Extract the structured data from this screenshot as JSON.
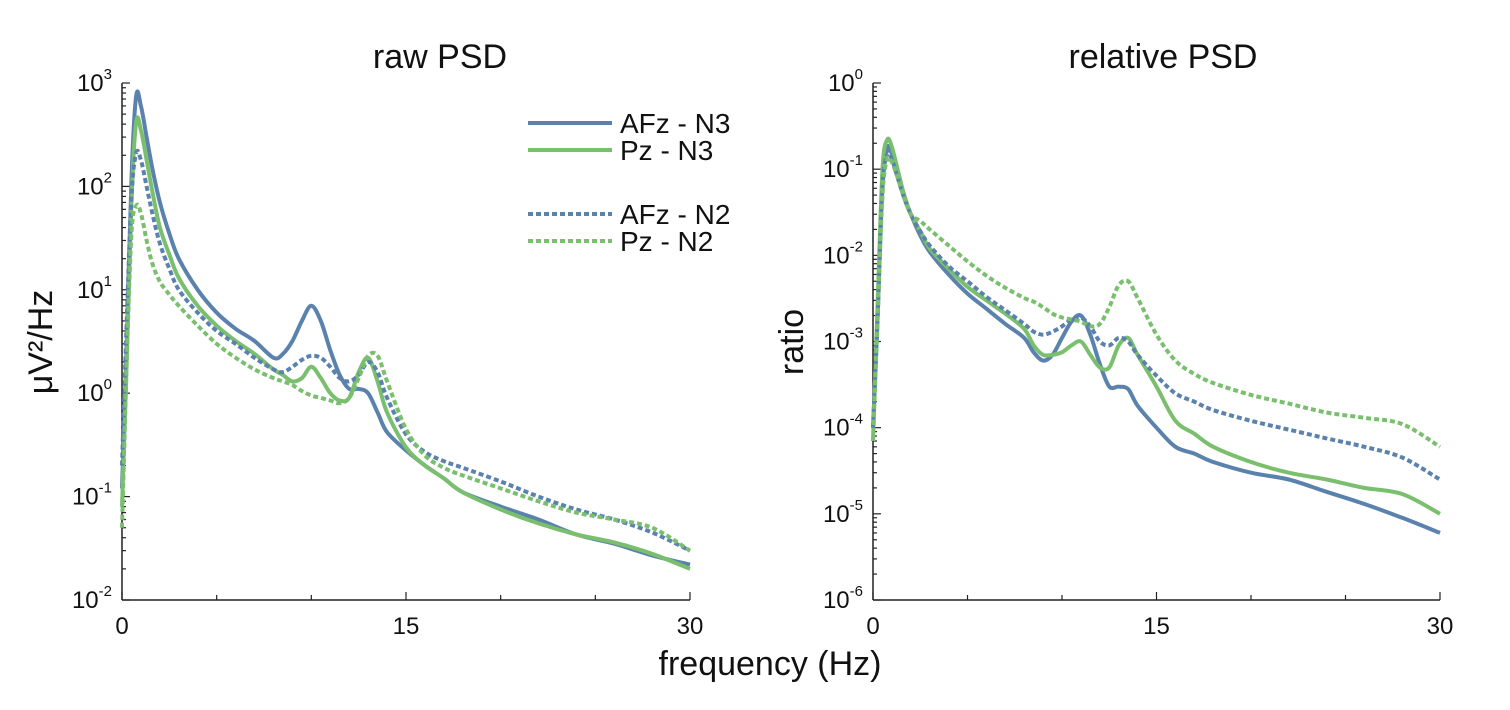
{
  "figure": {
    "xlabel": "frequency (Hz)"
  },
  "chart_data": [
    {
      "type": "line",
      "title": "raw PSD",
      "xlabel": "frequency (Hz)",
      "ylabel": "μV²/Hz",
      "xlim": [
        0,
        30
      ],
      "ylim": [
        0.01,
        1000
      ],
      "yscale": "log",
      "xticks": [
        0,
        15,
        30
      ],
      "xticks_minor": [
        5,
        10,
        20,
        25
      ],
      "yticks": [
        {
          "base": "10",
          "exp": "-2",
          "value": 0.01
        },
        {
          "base": "10",
          "exp": "-1",
          "value": 0.1
        },
        {
          "base": "10",
          "exp": "0",
          "value": 1
        },
        {
          "base": "10",
          "exp": "1",
          "value": 10
        },
        {
          "base": "10",
          "exp": "2",
          "value": 100
        },
        {
          "base": "10",
          "exp": "3",
          "value": 1000
        }
      ],
      "grid": false,
      "legend": {
        "placement": "top-right",
        "entries": [
          {
            "label": "AFz - N3",
            "series": 0
          },
          {
            "label": "Pz - N3",
            "series": 1
          },
          {
            "label": "AFz - N2",
            "series": 2
          },
          {
            "label": "Pz - N2",
            "series": 3
          }
        ]
      },
      "series": [
        {
          "name": "AFz - N3",
          "color": "#5a82ad",
          "dash": "solid",
          "x": [
            0,
            0.25,
            0.5,
            0.75,
            1.0,
            1.3,
            1.6,
            2,
            2.5,
            3,
            4,
            5,
            6,
            7,
            8,
            8.5,
            9,
            9.5,
            10,
            10.5,
            11,
            11.5,
            12,
            12.5,
            13,
            13.5,
            14,
            15,
            16,
            17,
            18,
            20,
            22,
            24,
            26,
            28,
            30
          ],
          "y": [
            0.12,
            3,
            120,
            750,
            600,
            300,
            150,
            70,
            35,
            20,
            10,
            6,
            4.2,
            3.2,
            2.2,
            2.4,
            3.2,
            5,
            7,
            5,
            2.6,
            1.5,
            1.1,
            1.1,
            1.0,
            0.65,
            0.42,
            0.28,
            0.2,
            0.15,
            0.11,
            0.08,
            0.06,
            0.043,
            0.035,
            0.027,
            0.022
          ]
        },
        {
          "name": "Pz - N3",
          "color": "#7abf6e",
          "dash": "solid",
          "x": [
            0,
            0.25,
            0.5,
            0.75,
            1.0,
            1.3,
            1.6,
            2,
            2.5,
            3,
            4,
            5,
            6,
            7,
            8,
            8.5,
            9,
            9.5,
            10,
            10.5,
            11,
            11.5,
            12,
            12.5,
            13,
            13.5,
            14,
            15,
            16,
            17,
            18,
            20,
            22,
            24,
            26,
            28,
            30
          ],
          "y": [
            0.08,
            2,
            70,
            420,
            350,
            180,
            90,
            40,
            22,
            13,
            7,
            4.5,
            3.2,
            2.4,
            1.7,
            1.5,
            1.3,
            1.4,
            1.8,
            1.4,
            1.0,
            0.85,
            0.9,
            1.6,
            2.2,
            1.3,
            0.65,
            0.3,
            0.2,
            0.15,
            0.11,
            0.075,
            0.055,
            0.043,
            0.036,
            0.028,
            0.02
          ]
        },
        {
          "name": "AFz - N2",
          "color": "#5a82ad",
          "dash": "dotted",
          "x": [
            0,
            0.25,
            0.5,
            0.75,
            1.0,
            1.3,
            1.6,
            2,
            2.5,
            3,
            4,
            5,
            6,
            7,
            8,
            8.5,
            9,
            9.5,
            10,
            10.5,
            11,
            11.5,
            12,
            12.5,
            13,
            13.5,
            14,
            15,
            16,
            17,
            18,
            20,
            22,
            24,
            26,
            28,
            30
          ],
          "y": [
            0.2,
            5,
            80,
            210,
            180,
            100,
            55,
            28,
            16,
            10,
            6,
            4,
            3,
            2.2,
            1.7,
            1.6,
            1.8,
            2.1,
            2.3,
            2.2,
            1.8,
            1.4,
            1.3,
            1.5,
            2.0,
            1.6,
            0.9,
            0.4,
            0.27,
            0.22,
            0.19,
            0.14,
            0.1,
            0.075,
            0.06,
            0.045,
            0.03
          ]
        },
        {
          "name": "Pz - N2",
          "color": "#7abf6e",
          "dash": "dotted",
          "x": [
            0,
            0.25,
            0.5,
            0.75,
            1.0,
            1.3,
            1.6,
            2,
            2.5,
            3,
            4,
            5,
            6,
            7,
            8,
            8.5,
            9,
            9.5,
            10,
            10.5,
            11,
            11.5,
            12,
            12.5,
            13,
            13.5,
            14,
            15,
            16,
            17,
            18,
            20,
            22,
            24,
            26,
            28,
            30
          ],
          "y": [
            0.05,
            2,
            35,
            65,
            55,
            30,
            18,
            12,
            9,
            7,
            4.5,
            3,
            2.2,
            1.7,
            1.4,
            1.3,
            1.2,
            1.05,
            0.95,
            0.9,
            0.85,
            0.8,
            0.9,
            1.4,
            2.3,
            2.3,
            1.3,
            0.45,
            0.25,
            0.19,
            0.16,
            0.12,
            0.09,
            0.07,
            0.06,
            0.05,
            0.03
          ]
        }
      ]
    },
    {
      "type": "line",
      "title": "relative PSD",
      "xlabel": "frequency (Hz)",
      "ylabel": "ratio",
      "xlim": [
        0,
        30
      ],
      "ylim": [
        1e-06,
        1
      ],
      "yscale": "log",
      "xticks": [
        0,
        15,
        30
      ],
      "xticks_minor": [
        5,
        10,
        20,
        25
      ],
      "yticks": [
        {
          "base": "10",
          "exp": "-6",
          "value": 1e-06
        },
        {
          "base": "10",
          "exp": "-5",
          "value": 1e-05
        },
        {
          "base": "10",
          "exp": "-4",
          "value": 0.0001
        },
        {
          "base": "10",
          "exp": "-3",
          "value": 0.001
        },
        {
          "base": "10",
          "exp": "-2",
          "value": 0.01
        },
        {
          "base": "10",
          "exp": "-1",
          "value": 0.1
        },
        {
          "base": "10",
          "exp": "0",
          "value": 1
        }
      ],
      "grid": false,
      "series": [
        {
          "name": "AFz - N3",
          "color": "#5a82ad",
          "dash": "solid",
          "x": [
            0,
            0.25,
            0.5,
            0.75,
            1.0,
            1.3,
            1.6,
            2,
            2.5,
            3,
            4,
            5,
            6,
            7,
            8,
            8.5,
            9,
            9.5,
            10,
            10.5,
            11,
            11.5,
            12,
            12.5,
            13,
            13.5,
            14,
            15,
            16,
            17,
            18,
            20,
            22,
            24,
            26,
            28,
            30
          ],
          "y": [
            0.0001,
            0.002,
            0.08,
            0.18,
            0.15,
            0.09,
            0.05,
            0.03,
            0.017,
            0.011,
            0.006,
            0.0036,
            0.0024,
            0.0016,
            0.0011,
            0.00075,
            0.0006,
            0.0007,
            0.0011,
            0.0017,
            0.002,
            0.0012,
            0.00055,
            0.0003,
            0.0003,
            0.00028,
            0.00018,
            0.0001,
            6e-05,
            5e-05,
            4e-05,
            3e-05,
            2.5e-05,
            1.8e-05,
            1.3e-05,
            9e-06,
            6e-06
          ]
        },
        {
          "name": "Pz - N3",
          "color": "#7abf6e",
          "dash": "solid",
          "x": [
            0,
            0.25,
            0.5,
            0.75,
            1.0,
            1.3,
            1.6,
            2,
            2.5,
            3,
            4,
            5,
            6,
            7,
            8,
            8.5,
            9,
            9.5,
            10,
            10.5,
            11,
            11.5,
            12,
            12.5,
            13,
            13.5,
            14,
            15,
            16,
            17,
            18,
            20,
            22,
            24,
            26,
            28,
            30
          ],
          "y": [
            7e-05,
            0.003,
            0.1,
            0.22,
            0.18,
            0.1,
            0.055,
            0.03,
            0.019,
            0.012,
            0.007,
            0.0043,
            0.003,
            0.0021,
            0.0014,
            0.0009,
            0.0007,
            0.0007,
            0.00075,
            0.0009,
            0.001,
            0.0007,
            0.0005,
            0.0005,
            0.0009,
            0.0011,
            0.0007,
            0.0003,
            0.00012,
            8.5e-05,
            6e-05,
            4e-05,
            3e-05,
            2.5e-05,
            2e-05,
            1.7e-05,
            1e-05
          ]
        },
        {
          "name": "AFz - N2",
          "color": "#5a82ad",
          "dash": "dotted",
          "x": [
            0,
            0.25,
            0.5,
            0.75,
            1.0,
            1.3,
            1.6,
            2,
            2.5,
            3,
            4,
            5,
            6,
            7,
            8,
            8.5,
            9,
            9.5,
            10,
            10.5,
            11,
            11.5,
            12,
            12.5,
            13,
            13.5,
            14,
            15,
            16,
            17,
            18,
            20,
            22,
            24,
            26,
            28,
            30
          ],
          "y": [
            0.0001,
            0.002,
            0.06,
            0.15,
            0.13,
            0.08,
            0.05,
            0.03,
            0.019,
            0.013,
            0.0075,
            0.005,
            0.0033,
            0.0023,
            0.0016,
            0.0013,
            0.0012,
            0.0013,
            0.0015,
            0.0018,
            0.0019,
            0.0015,
            0.001,
            0.0009,
            0.0011,
            0.001,
            0.0007,
            0.0004,
            0.00025,
            0.0002,
            0.00016,
            0.00012,
            9.5e-05,
            7.5e-05,
            6e-05,
            4.5e-05,
            2.5e-05
          ]
        },
        {
          "name": "Pz - N2",
          "color": "#7abf6e",
          "dash": "dotted",
          "x": [
            0,
            0.25,
            0.5,
            0.75,
            1.0,
            1.3,
            1.6,
            2,
            2.5,
            3,
            4,
            5,
            6,
            7,
            8,
            8.5,
            9,
            9.5,
            10,
            10.5,
            11,
            11.5,
            12,
            12.5,
            13,
            13.5,
            14,
            15,
            16,
            17,
            18,
            20,
            22,
            24,
            26,
            28,
            30
          ],
          "y": [
            7e-05,
            0.002,
            0.05,
            0.13,
            0.12,
            0.08,
            0.05,
            0.03,
            0.025,
            0.02,
            0.013,
            0.0085,
            0.0058,
            0.0042,
            0.0032,
            0.0029,
            0.0025,
            0.0021,
            0.0019,
            0.0018,
            0.0017,
            0.0015,
            0.0016,
            0.0025,
            0.0045,
            0.005,
            0.0032,
            0.0012,
            0.0006,
            0.00042,
            0.00033,
            0.00024,
            0.00019,
            0.00015,
            0.00013,
            0.00011,
            6e-05
          ]
        }
      ]
    }
  ]
}
